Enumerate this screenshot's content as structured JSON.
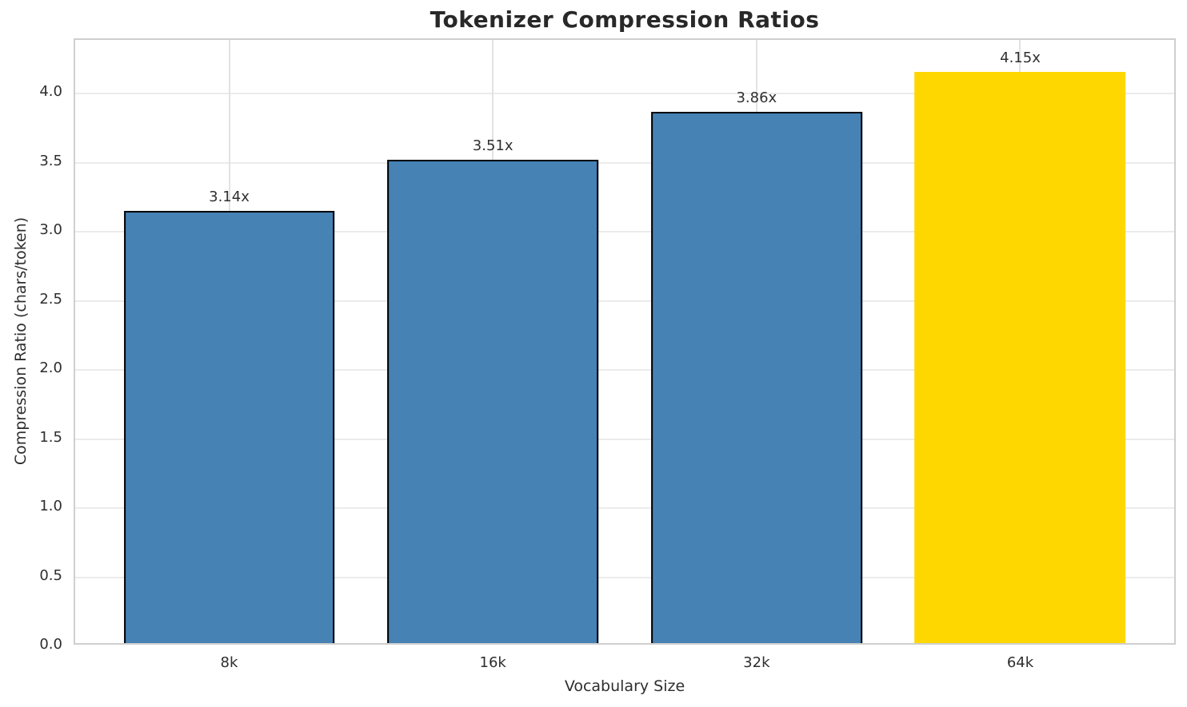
{
  "chart_data": {
    "type": "bar",
    "title": "Tokenizer Compression Ratios",
    "xlabel": "Vocabulary Size",
    "ylabel": "Compression Ratio (chars/token)",
    "categories": [
      "8k",
      "16k",
      "32k",
      "64k"
    ],
    "values": [
      3.14,
      3.51,
      3.86,
      4.15
    ],
    "value_labels": [
      "3.14x",
      "3.51x",
      "3.86x",
      "4.15x"
    ],
    "series": [
      {
        "name": "compression_ratio",
        "values": [
          3.14,
          3.51,
          3.86,
          4.15
        ]
      }
    ],
    "bar_colors": [
      "#4682b4",
      "#4682b4",
      "#4682b4",
      "#ffd700"
    ],
    "bar_edge_colors": [
      "#000000",
      "#000000",
      "#000000",
      "none"
    ],
    "highlight_index": 3,
    "ylim": [
      0,
      4.39
    ],
    "yticks": [
      0.0,
      0.5,
      1.0,
      1.5,
      2.0,
      2.5,
      3.0,
      3.5,
      4.0
    ],
    "ytick_labels": [
      "0.0",
      "0.5",
      "1.0",
      "1.5",
      "2.0",
      "2.5",
      "3.0",
      "3.5",
      "4.0"
    ],
    "grid": true,
    "grid_axis": "both",
    "legend_position": "none",
    "colors": {
      "bar_default": "#4682b4",
      "bar_highlight": "#ffd700",
      "bar_edge": "#000000",
      "grid": "#ebebeb",
      "spine": "#cfcfcf",
      "text": "#2e2e2e"
    }
  }
}
